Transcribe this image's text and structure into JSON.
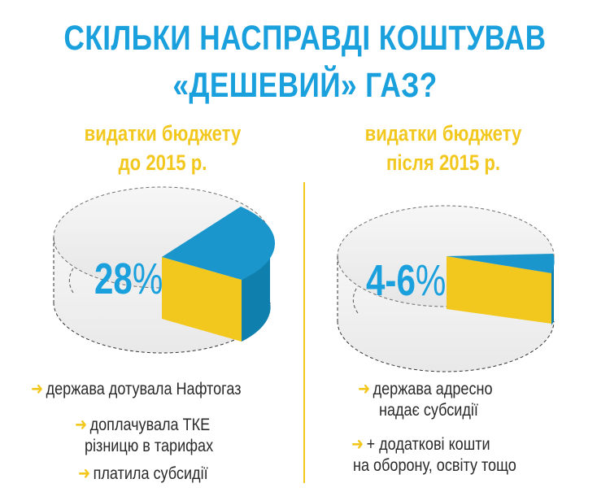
{
  "title": {
    "line1": "СКІЛЬКИ НАСПРАВДІ КОШТУВАВ",
    "line2": "«ДЕШЕВИЙ» ГАЗ?"
  },
  "left": {
    "subtitle_line1": "видатки бюджету",
    "subtitle_line2": "до 2015 р.",
    "percent": "28",
    "percent_sign": "%",
    "bullets": [
      "держава дотувала Нафтогаз",
      "доплачувала ТКЕ",
      "різницю в тарифах",
      "платила субсидії"
    ]
  },
  "right": {
    "subtitle_line1": "видатки бюджету",
    "subtitle_line2": "після  2015 р.",
    "percent": "4-6",
    "percent_sign": "%",
    "bullets": [
      "держава адресно",
      "надає субсидії",
      "+ додаткові кошти",
      "на оборону, освіту тощо"
    ]
  },
  "colors": {
    "blue": "#1aa0dc",
    "yellow": "#f2c81e",
    "arrow_icon": "arrow-right-icon"
  }
}
